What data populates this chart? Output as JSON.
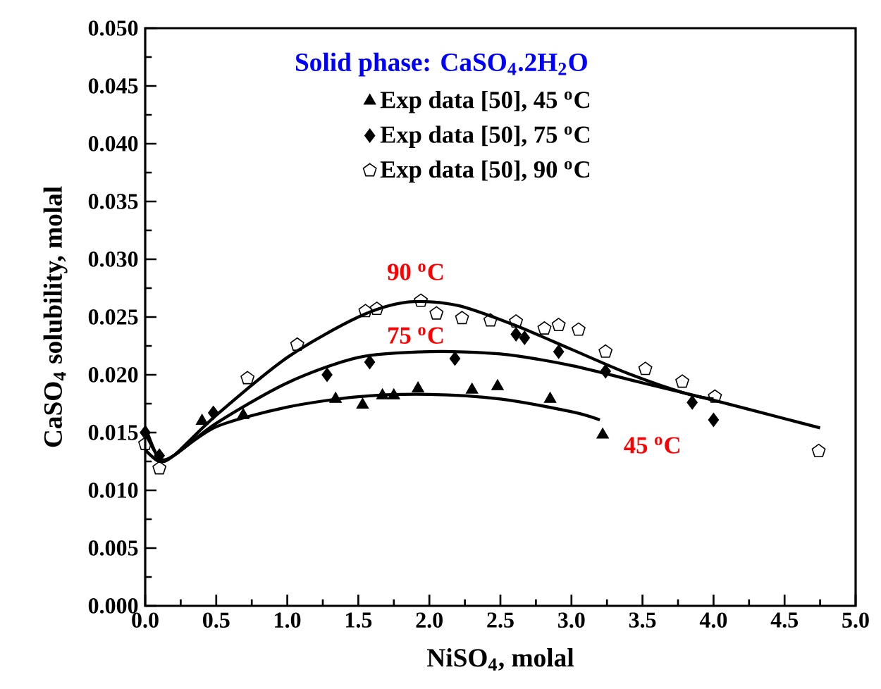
{
  "chart_data": {
    "type": "scatter",
    "xlabel": "NiSO$_{4}$, molal",
    "ylabel": "CaSO$_{4}$ solubility, molal",
    "xlim": [
      0,
      5
    ],
    "ylim": [
      0,
      0.05
    ],
    "xticks": [
      {
        "value": 0,
        "label": "0.0"
      },
      {
        "value": 0.5,
        "label": "0.5"
      },
      {
        "value": 1,
        "label": "1.0"
      },
      {
        "value": 1.5,
        "label": "1.5"
      },
      {
        "value": 2,
        "label": "2.0"
      },
      {
        "value": 2.5,
        "label": "2.5"
      },
      {
        "value": 3,
        "label": "3.0"
      },
      {
        "value": 3.5,
        "label": "3.5"
      },
      {
        "value": 4,
        "label": "4.0"
      },
      {
        "value": 4.5,
        "label": "4.5"
      },
      {
        "value": 5,
        "label": "5.0"
      }
    ],
    "yticks": [
      {
        "value": 0,
        "label": "0.000"
      },
      {
        "value": 0.005,
        "label": "0.005"
      },
      {
        "value": 0.01,
        "label": "0.010"
      },
      {
        "value": 0.015,
        "label": "0.015"
      },
      {
        "value": 0.02,
        "label": "0.020"
      },
      {
        "value": 0.025,
        "label": "0.025"
      },
      {
        "value": 0.03,
        "label": "0.030"
      },
      {
        "value": 0.035,
        "label": "0.035"
      },
      {
        "value": 0.04,
        "label": "0.040"
      },
      {
        "value": 0.045,
        "label": "0.045"
      },
      {
        "value": 0.05,
        "label": "0.050"
      }
    ],
    "legend": "top",
    "series": [
      {
        "name": "Exp data [50], 45 $^{o}$C",
        "marker": "triangle",
        "color": "#000000",
        "x": [
          0.4,
          0.69,
          1.34,
          1.53,
          1.67,
          1.75,
          1.92,
          2.3,
          2.48,
          2.85,
          3.22
        ],
        "values": [
          0.016,
          0.0165,
          0.0179,
          0.0174,
          0.0182,
          0.0182,
          0.0188,
          0.0187,
          0.019,
          0.0179,
          0.0148
        ]
      },
      {
        "name": "Exp data [50], 75 $^{o}$C",
        "marker": "diamond",
        "color": "#000000",
        "x": [
          0.0,
          0.1,
          0.48,
          1.28,
          1.58,
          2.18,
          2.61,
          2.67,
          2.91,
          3.24,
          3.85,
          4.0
        ],
        "values": [
          0.015,
          0.013,
          0.0167,
          0.02,
          0.0211,
          0.0214,
          0.0235,
          0.0232,
          0.022,
          0.0203,
          0.0176,
          0.0161
        ]
      },
      {
        "name": "Exp data [50], 90 $^{o}$C",
        "color": "#000000",
        "x": [
          0.0,
          0.1,
          0.72,
          1.07,
          1.55,
          1.63,
          1.94,
          2.05,
          2.23,
          2.43,
          2.61,
          2.81,
          2.91,
          3.05,
          3.24,
          3.52,
          3.78,
          4.01,
          4.74
        ],
        "values": [
          0.014,
          0.0119,
          0.0197,
          0.0226,
          0.0255,
          0.0257,
          0.0264,
          0.0253,
          0.0249,
          0.0247,
          0.0246,
          0.024,
          0.0243,
          0.0239,
          0.022,
          0.0205,
          0.0194,
          0.0181,
          0.0134
        ]
      },
      {
        "type": "line",
        "marker": "none",
        "color": "#000000",
        "x": [
          0,
          0.1,
          0.2,
          0.5,
          1.0,
          1.5,
          2.0,
          2.5,
          3.0,
          3.2
        ],
        "values": [
          0.0135,
          0.0125,
          0.013,
          0.0155,
          0.0172,
          0.0181,
          0.0183,
          0.0179,
          0.0168,
          0.0161
        ]
      },
      {
        "type": "line",
        "marker": "none",
        "color": "#000000",
        "x": [
          0,
          0.1,
          0.2,
          0.5,
          1.0,
          1.5,
          2.0,
          2.5,
          3.0,
          3.5,
          4.0,
          4.5,
          4.75
        ],
        "values": [
          0.015,
          0.0128,
          0.013,
          0.0158,
          0.0193,
          0.0215,
          0.022,
          0.0218,
          0.0208,
          0.0193,
          0.0178,
          0.0162,
          0.0154
        ]
      },
      {
        "type": "line",
        "marker": "none",
        "color": "#000000",
        "x": [
          0,
          0.1,
          0.2,
          0.5,
          1.0,
          1.5,
          1.85,
          2.2,
          2.6,
          3.0,
          3.4,
          3.8,
          4.0
        ],
        "values": [
          0.0155,
          0.0127,
          0.013,
          0.0165,
          0.0215,
          0.025,
          0.0263,
          0.026,
          0.0243,
          0.0222,
          0.0201,
          0.0184,
          0.0179
        ]
      }
    ],
    "annotations": [
      "Solid phase: CaSO$_{4}$.2H$_{2}$O",
      "90 $^{o}$C",
      "75 $^{o}$C",
      "45 $^{o}$C"
    ]
  }
}
